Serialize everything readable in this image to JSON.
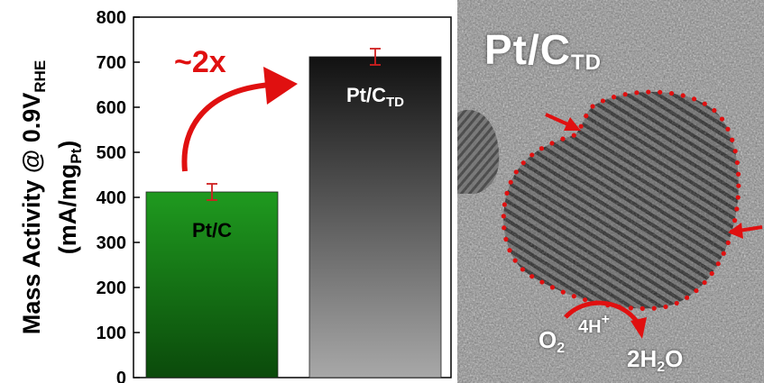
{
  "chart_data": {
    "type": "bar",
    "categories": [
      "Pt/C",
      "Pt/C_TD"
    ],
    "category_labels": [
      {
        "main": "Pt/C",
        "sub": ""
      },
      {
        "main": "Pt/C",
        "sub": "TD"
      }
    ],
    "values": [
      412,
      712
    ],
    "errors": [
      18,
      18
    ],
    "bar_colors": [
      [
        "#1f9a1f",
        "#0b4a0b"
      ],
      [
        "#111111",
        "#a8a8a8"
      ]
    ],
    "error_color": "#d02020",
    "ylabel_line1": {
      "main": "Mass Activity @ 0.9V",
      "sub": "RHE"
    },
    "ylabel_line2": {
      "main": "(mA/mg",
      "sub": "Pt",
      "tail": ")"
    },
    "ylim": [
      0,
      800
    ],
    "yticks": [
      0,
      100,
      200,
      300,
      400,
      500,
      600,
      700,
      800
    ],
    "annotation": "~2x",
    "annotation_color": "#e01010"
  },
  "tem_image": {
    "title_main": "Pt/C",
    "title_sub": "TD",
    "reactant": {
      "main": "O",
      "sub": "2"
    },
    "proton": {
      "main": "4H",
      "sup": "+"
    },
    "product": {
      "pre": "2H",
      "sub": "2",
      "post": "O"
    },
    "marker_color": "#e01010"
  }
}
